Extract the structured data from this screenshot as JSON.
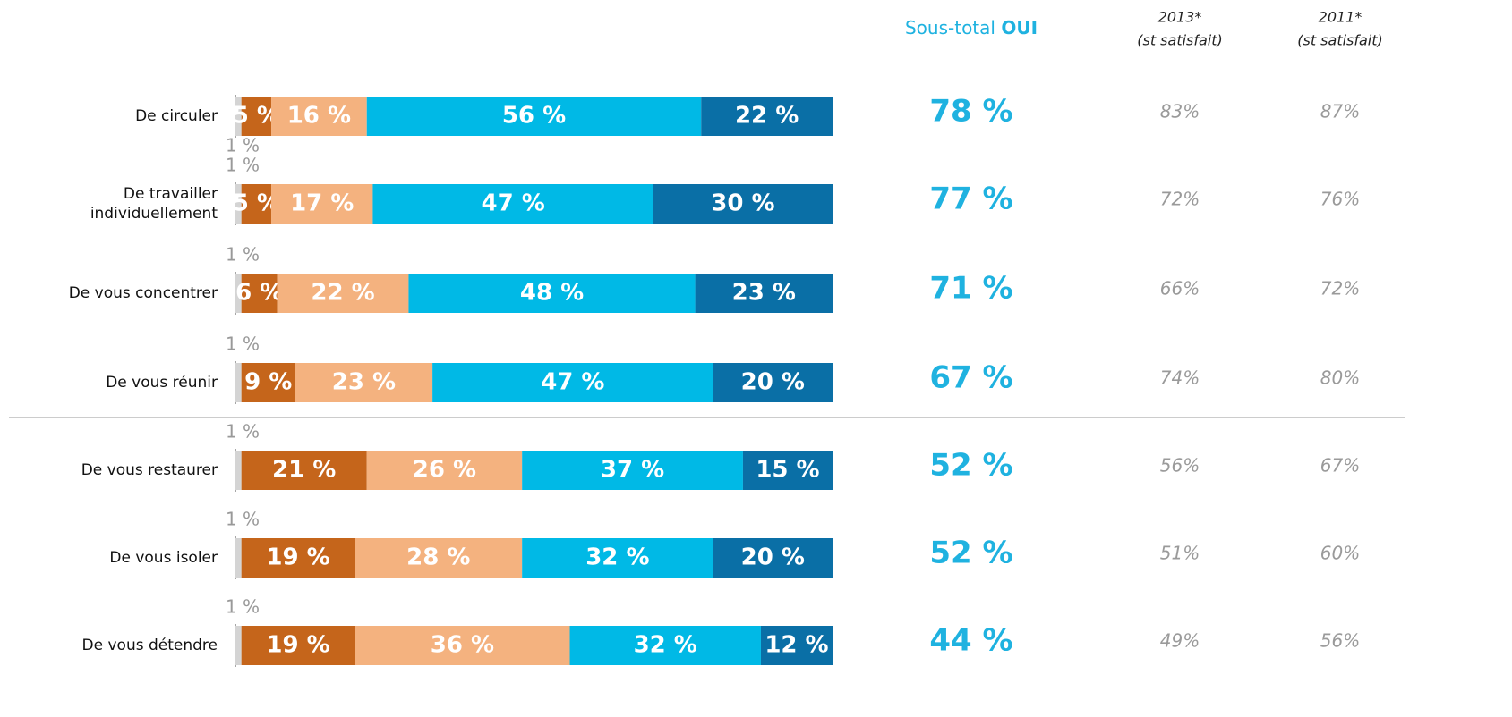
{
  "chart_data": {
    "type": "stacked-bar-horizontal",
    "categories": [
      "De circuler",
      "De travailler individuellement",
      "De vous concentrer",
      "De vous réunir",
      "De vous restaurer",
      "De vous isoler",
      "De vous détendre"
    ],
    "xlim": [
      0,
      100
    ],
    "series": [
      {
        "color": "#d4d4d4",
        "values": [
          1,
          1,
          1,
          1,
          1,
          1,
          1
        ],
        "value_labels": [
          "1 %",
          "1 %",
          "1 %",
          "1 %",
          "1 %",
          "1 %",
          "1 %"
        ]
      },
      {
        "color": "#c5651b",
        "values": [
          5,
          5,
          6,
          9,
          21,
          19,
          19
        ],
        "value_labels": [
          "5 %",
          "5 %",
          "6 %",
          "9 %",
          "21 %",
          "19 %",
          "19 %"
        ]
      },
      {
        "color": "#f4b27f",
        "values": [
          16,
          17,
          22,
          23,
          26,
          28,
          36
        ],
        "value_labels": [
          "16 %",
          "17 %",
          "22 %",
          "23 %",
          "26 %",
          "28 %",
          "36 %"
        ]
      },
      {
        "color": "#00b9e6",
        "values": [
          56,
          47,
          48,
          47,
          37,
          32,
          32
        ],
        "value_labels": [
          "56 %",
          "47 %",
          "48 %",
          "47 %",
          "37 %",
          "32 %",
          "32 %"
        ]
      },
      {
        "color": "#0a6fa6",
        "values": [
          22,
          30,
          23,
          20,
          15,
          20,
          12
        ],
        "value_labels": [
          "22 %",
          "30 %",
          "23 %",
          "20 %",
          "15 %",
          "20 %",
          "12 %"
        ]
      }
    ],
    "columns": [
      {
        "title": "Sous-total",
        "title_bold": "OUI",
        "color": "#1fb2e0",
        "values": [
          78,
          77,
          71,
          67,
          52,
          52,
          44
        ],
        "value_labels": [
          "78 %",
          "77 %",
          "71 %",
          "67 %",
          "52 %",
          "52 %",
          "44 %"
        ]
      },
      {
        "title": "2013*",
        "subtitle": "(st satisfait)",
        "color": "#9a9a9a",
        "values": [
          83,
          72,
          66,
          74,
          56,
          51,
          49
        ],
        "value_labels": [
          "83%",
          "72%",
          "66%",
          "74%",
          "56%",
          "51%",
          "49%"
        ]
      },
      {
        "title": "2011*",
        "subtitle": "(st satisfait)",
        "color": "#9a9a9a",
        "values": [
          87,
          76,
          72,
          80,
          67,
          60,
          56
        ],
        "value_labels": [
          "87%",
          "76%",
          "72%",
          "80%",
          "67%",
          "60%",
          "56%"
        ]
      }
    ]
  }
}
